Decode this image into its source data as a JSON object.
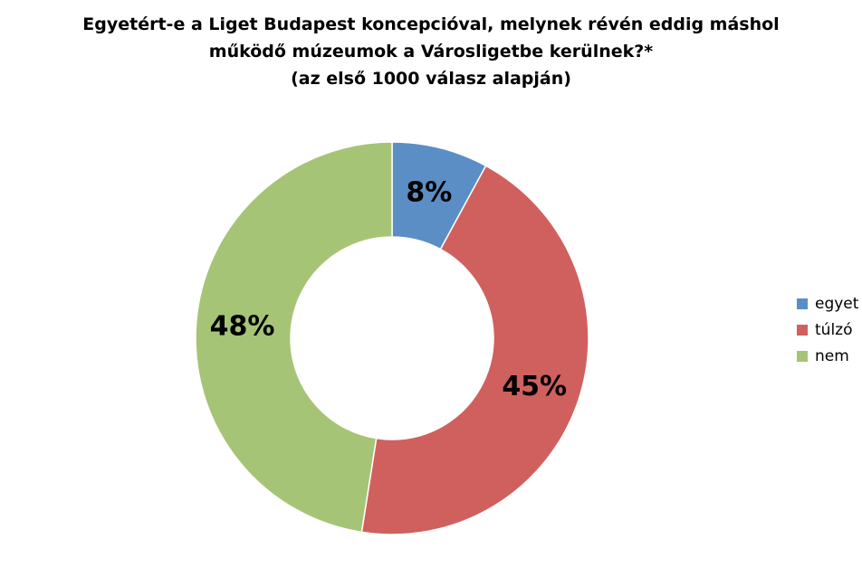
{
  "chart_data": {
    "type": "pie",
    "donut": true,
    "title_lines": [
      "Egyetért-e a Liget Budapest koncepcióval, melynek révén eddig máshol",
      "működő múzeumok a Városligetbe kerülnek?*",
      "(az első 1000 válasz alapján)"
    ],
    "slices": [
      {
        "label": "egyet",
        "value": 8,
        "value_label": "8%",
        "color": "#5B8EC5"
      },
      {
        "label": "túlzó",
        "value": 45,
        "value_label": "45%",
        "color": "#D0605E"
      },
      {
        "label": "nem",
        "value": 48,
        "value_label": "48%",
        "color": "#A6C475"
      }
    ],
    "legend_position": "right"
  }
}
